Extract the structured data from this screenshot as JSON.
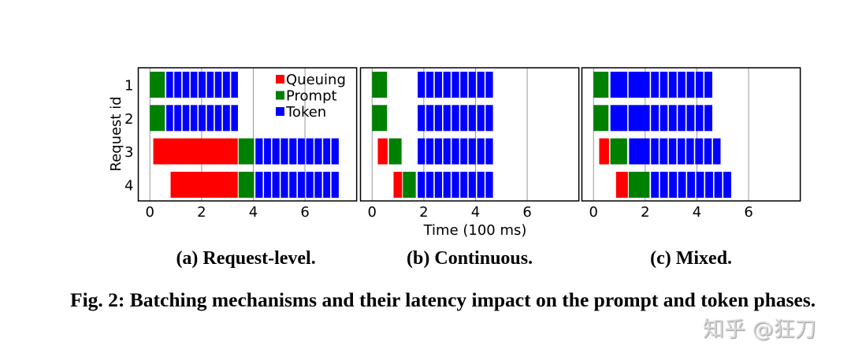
{
  "chart_data": [
    {
      "type": "bar",
      "subtitle": "(a) Request-level.",
      "xlim": [
        -0.45,
        8.0
      ],
      "xticks": [
        "0",
        "2",
        "4",
        "6"
      ],
      "ylabel": "Request id",
      "yticks": [
        "1",
        "2",
        "3",
        "4"
      ],
      "grid": "vertical",
      "legend": {
        "placement": "top-right",
        "entries": [
          "Queuing",
          "Prompt",
          "Token"
        ]
      },
      "requests": [
        {
          "id": "1",
          "queue": null,
          "prompt": [
            0,
            0.61
          ],
          "tokens": [
            0.61,
            0.92,
            1.24,
            1.55,
            1.86,
            2.18,
            2.49,
            2.8,
            3.12,
            3.43
          ]
        },
        {
          "id": "2",
          "queue": null,
          "prompt": [
            0,
            0.61
          ],
          "tokens": [
            0.61,
            0.92,
            1.24,
            1.55,
            1.86,
            2.18,
            2.49,
            2.8,
            3.12,
            3.43
          ]
        },
        {
          "id": "3",
          "queue": [
            0.13,
            3.43
          ],
          "prompt": [
            3.43,
            4.06
          ],
          "tokens": [
            4.06,
            4.39,
            4.71,
            5.04,
            5.37,
            5.7,
            6.02,
            6.35,
            6.68,
            7.0,
            7.33
          ]
        },
        {
          "id": "4",
          "queue": [
            0.8,
            3.43
          ],
          "prompt": [
            3.43,
            4.06
          ],
          "tokens": [
            4.06,
            4.39,
            4.71,
            5.04,
            5.37,
            5.7,
            6.02,
            6.35,
            6.68,
            7.0,
            7.33
          ]
        }
      ]
    },
    {
      "type": "bar",
      "subtitle": "(b) Continuous.",
      "xlabel": "Time (100 ms)",
      "xlim": [
        -0.45,
        8.0
      ],
      "xticks": [
        "0",
        "2",
        "4",
        "6"
      ],
      "grid": "vertical",
      "requests": [
        {
          "id": "1",
          "queue": null,
          "prompt": [
            0,
            0.61
          ],
          "tokens": [
            1.74,
            2.07,
            2.4,
            2.73,
            3.06,
            3.39,
            3.71,
            4.04,
            4.37,
            4.7
          ]
        },
        {
          "id": "2",
          "queue": null,
          "prompt": [
            0,
            0.61
          ],
          "tokens": [
            1.74,
            2.07,
            2.4,
            2.73,
            3.06,
            3.39,
            3.71,
            4.04,
            4.37,
            4.7
          ]
        },
        {
          "id": "3",
          "queue": [
            0.22,
            0.63
          ],
          "prompt": [
            0.65,
            1.17
          ],
          "tokens": [
            1.74,
            2.07,
            2.4,
            2.73,
            3.06,
            3.39,
            3.71,
            4.04,
            4.37,
            4.7
          ]
        },
        {
          "id": "4",
          "queue": [
            0.83,
            1.19
          ],
          "prompt": [
            1.19,
            1.72
          ],
          "tokens": [
            1.74,
            2.07,
            2.4,
            2.73,
            3.06,
            3.39,
            3.71,
            4.04,
            4.37,
            4.7
          ]
        }
      ]
    },
    {
      "type": "bar",
      "subtitle": "(c) Mixed.",
      "xlim": [
        -0.45,
        8.0
      ],
      "xticks": [
        "0",
        "2",
        "4",
        "6"
      ],
      "grid": "vertical",
      "requests": [
        {
          "id": "1",
          "queue": null,
          "prompt": [
            0,
            0.61
          ],
          "tokens": [
            0.63,
            1.33,
            2.2,
            2.55,
            2.89,
            3.24,
            3.58,
            3.93,
            4.27,
            4.62
          ]
        },
        {
          "id": "2",
          "queue": null,
          "prompt": [
            0,
            0.61
          ],
          "tokens": [
            0.63,
            1.33,
            2.2,
            2.55,
            2.89,
            3.24,
            3.58,
            3.93,
            4.27,
            4.62
          ]
        },
        {
          "id": "3",
          "queue": [
            0.22,
            0.63
          ],
          "prompt": [
            0.65,
            1.33
          ],
          "tokens": [
            1.35,
            2.2,
            2.54,
            2.89,
            3.23,
            3.57,
            3.91,
            4.26,
            4.6,
            4.94
          ]
        },
        {
          "id": "4",
          "queue": [
            0.87,
            1.36
          ],
          "prompt": [
            1.36,
            2.2
          ],
          "tokens": [
            2.2,
            2.55,
            2.9,
            3.25,
            3.6,
            3.95,
            4.3,
            4.65,
            5.0,
            5.35
          ]
        }
      ]
    }
  ],
  "colors": {
    "Queuing": "#ff0000",
    "Prompt": "#008000",
    "Token": "#0000ff",
    "grid": "#999999"
  },
  "caption": "Fig. 2: Batching mechanisms and their latency impact on the prompt and token phases.",
  "watermark": "知乎 @狂刀"
}
